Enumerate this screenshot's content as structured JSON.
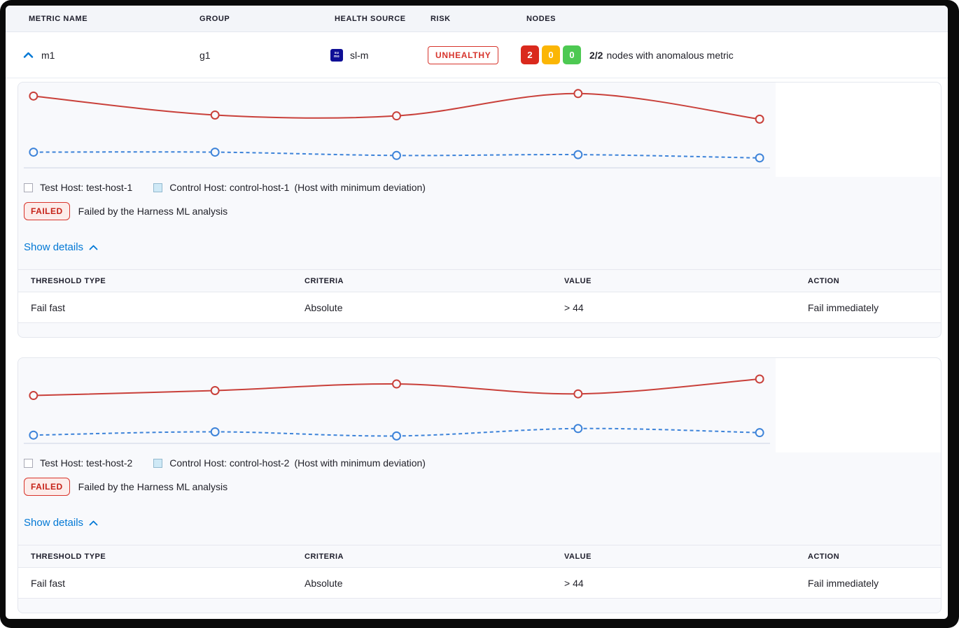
{
  "colors": {
    "accent_blue": "#0278d5",
    "risk_red": "#da291d",
    "warn_yellow": "#fbb605",
    "ok_green": "#4dc952",
    "failed_text": "#c62218",
    "line_test": "#c9403a",
    "line_control": "#3d83d9",
    "axis": "#ccd3e4",
    "chart_bg": "#f8f9fc"
  },
  "header": {
    "columns": [
      "METRIC NAME",
      "GROUP",
      "HEALTH SOURCE",
      "RISK",
      "NODES"
    ]
  },
  "metric_row": {
    "name": "m1",
    "group": "g1",
    "health_source": "sl-m",
    "health_source_icon_lines": [
      "su",
      "mo"
    ],
    "risk_label": "UNHEALTHY",
    "nodes": {
      "anomalous": "2",
      "warning": "0",
      "healthy": "0",
      "summary_count": "2/2",
      "summary_text": "nodes with anomalous metric"
    }
  },
  "cards": [
    {
      "legend": {
        "test": "Test Host: test-host-1",
        "control": "Control Host: control-host-1",
        "note": "(Host with minimum deviation)"
      },
      "status": {
        "badge": "FAILED",
        "message": "Failed by the Harness ML analysis"
      },
      "details_link": "Show details",
      "table": {
        "headers": [
          "THRESHOLD TYPE",
          "CRITERIA",
          "VALUE",
          "ACTION"
        ],
        "rows": [
          [
            "Fail fast",
            "Absolute",
            "> 44",
            "Fail immediately"
          ]
        ]
      }
    },
    {
      "legend": {
        "test": "Test Host: test-host-2",
        "control": "Control Host: control-host-2",
        "note": "(Host with minimum deviation)"
      },
      "status": {
        "badge": "FAILED",
        "message": "Failed by the Harness ML analysis"
      },
      "details_link": "Show details",
      "table": {
        "headers": [
          "THRESHOLD TYPE",
          "CRITERIA",
          "VALUE",
          "ACTION"
        ],
        "rows": [
          [
            "Fail fast",
            "Absolute",
            "> 44",
            "Fail immediately"
          ]
        ]
      }
    }
  ],
  "chart_data": [
    {
      "type": "line",
      "title": "",
      "xlabel": "",
      "ylabel": "",
      "x": [
        0,
        1,
        2,
        3,
        4
      ],
      "ylim": [
        0,
        100
      ],
      "grid": false,
      "legend_position": "bottom",
      "series": [
        {
          "name": "Test Host: test-host-1",
          "color": "#c9403a",
          "dash": "solid",
          "values": [
            87,
            64,
            63,
            90,
            59
          ]
        },
        {
          "name": "Control Host: control-host-1",
          "color": "#3d83d9",
          "dash": "dashed",
          "values": [
            19,
            19,
            15,
            16,
            12
          ]
        }
      ]
    },
    {
      "type": "line",
      "title": "",
      "xlabel": "",
      "ylabel": "",
      "x": [
        0,
        1,
        2,
        3,
        4
      ],
      "ylim": [
        0,
        100
      ],
      "grid": false,
      "legend_position": "bottom",
      "series": [
        {
          "name": "Test Host: test-host-2",
          "color": "#c9403a",
          "dash": "solid",
          "values": [
            58,
            64,
            72,
            60,
            78
          ]
        },
        {
          "name": "Control Host: control-host-2",
          "color": "#3d83d9",
          "dash": "dashed",
          "values": [
            10,
            14,
            9,
            18,
            13
          ]
        }
      ]
    }
  ]
}
